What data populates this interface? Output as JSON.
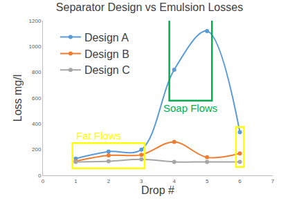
{
  "chart_data": {
    "type": "line",
    "title": "Separator Design vs Emulsion Losses",
    "x_label": "Drop #",
    "y_label": "Loss mg/l",
    "x": [
      1,
      2,
      3,
      4,
      5,
      6
    ],
    "series": [
      {
        "name": "Design A",
        "color": "#5b9bd5",
        "values": [
          130,
          185,
          200,
          820,
          1120,
          335
        ]
      },
      {
        "name": "Design B",
        "color": "#ed7d31",
        "values": [
          110,
          155,
          160,
          260,
          140,
          170
        ]
      },
      {
        "name": "Design C",
        "color": "#a5a5a5",
        "values": [
          105,
          110,
          125,
          105,
          105,
          105
        ]
      }
    ],
    "xlim": [
      0,
      7
    ],
    "xticks": [
      0,
      1,
      2,
      3,
      4,
      5,
      6,
      7
    ],
    "ylim": [
      0,
      1200
    ],
    "yticks": [
      0,
      200,
      400,
      600,
      800,
      1000,
      1200
    ],
    "grid": false,
    "legend": "upper left",
    "marker": "circle",
    "line_style": "smooth",
    "annotations": [
      {
        "text": "Fat Flows",
        "color": "#ffff00"
      },
      {
        "text": "Soap Flows",
        "color": "#00b050"
      }
    ]
  }
}
